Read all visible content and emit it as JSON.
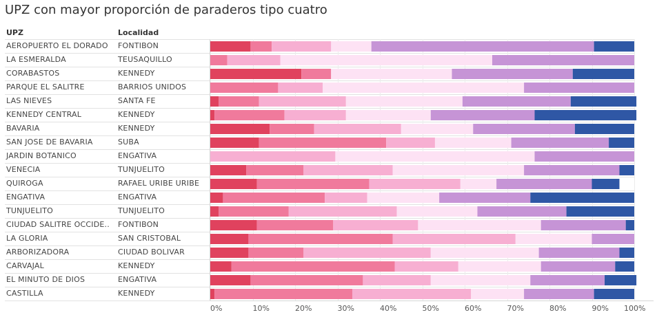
{
  "chart_data": {
    "type": "bar",
    "orientation": "horizontal",
    "stacked": true,
    "title": "UPZ con mayor proporción de paraderos tipo cuatro",
    "row_headers": [
      "UPZ",
      "Localidad"
    ],
    "categories": [
      {
        "upz": "AEROPUERTO EL DORADO",
        "localidad": "FONTIBON"
      },
      {
        "upz": "LA ESMERALDA",
        "localidad": "TEUSAQUILLO"
      },
      {
        "upz": "CORABASTOS",
        "localidad": "KENNEDY"
      },
      {
        "upz": "PARQUE EL SALITRE",
        "localidad": "BARRIOS UNIDOS"
      },
      {
        "upz": "LAS NIEVES",
        "localidad": "SANTA FE"
      },
      {
        "upz": "KENNEDY CENTRAL",
        "localidad": "KENNEDY"
      },
      {
        "upz": "BAVARIA",
        "localidad": "KENNEDY"
      },
      {
        "upz": "SAN JOSE DE BAVARIA",
        "localidad": "SUBA"
      },
      {
        "upz": "JARDIN BOTANICO",
        "localidad": "ENGATIVA"
      },
      {
        "upz": "VENECIA",
        "localidad": "TUNJUELITO"
      },
      {
        "upz": "QUIROGA",
        "localidad": "RAFAEL URIBE URIBE"
      },
      {
        "upz": "ENGATIVA",
        "localidad": "ENGATIVA"
      },
      {
        "upz": "TUNJUELITO",
        "localidad": "TUNJUELITO"
      },
      {
        "upz": "CIUDAD SALITRE OCCIDE..",
        "localidad": "FONTIBON"
      },
      {
        "upz": "LA GLORIA",
        "localidad": "SAN CRISTOBAL"
      },
      {
        "upz": "ARBORIZADORA",
        "localidad": "CIUDAD BOLIVAR"
      },
      {
        "upz": "CARVAJAL",
        "localidad": "KENNEDY"
      },
      {
        "upz": "EL MINUTO DE DIOS",
        "localidad": "ENGATIVA"
      },
      {
        "upz": "CASTILLA",
        "localidad": "KENNEDY"
      }
    ],
    "series": [
      {
        "color": "#e0425e",
        "values": [
          9.5,
          0,
          21.5,
          0,
          2,
          1,
          14,
          11.5,
          0,
          8.5,
          11,
          3,
          2,
          11,
          9,
          9,
          5,
          9.5,
          1
        ]
      },
      {
        "color": "#f07a9c",
        "values": [
          5,
          4,
          7,
          16,
          9.5,
          16.5,
          10.5,
          30,
          0,
          13.5,
          26.5,
          24,
          16.5,
          18,
          34,
          13,
          38.5,
          26.5,
          32.5
        ]
      },
      {
        "color": "#f7afd2",
        "values": [
          14,
          12.5,
          0,
          10.5,
          20.5,
          14.5,
          20.5,
          11.5,
          29.5,
          21,
          21.5,
          10,
          25.5,
          20,
          29,
          30,
          15,
          16,
          28
        ]
      },
      {
        "color": "#fde2f4",
        "values": [
          9.5,
          50,
          28.5,
          47.5,
          27.5,
          20,
          17,
          18,
          47,
          31,
          8.5,
          17,
          19,
          29,
          18,
          25.5,
          19.5,
          23.5,
          12.5
        ]
      },
      {
        "color": "#c694d6",
        "values": [
          52.5,
          33.5,
          28.5,
          26,
          25.5,
          24.5,
          24,
          23,
          23.5,
          22.5,
          22.5,
          21.5,
          21,
          20,
          10,
          19,
          17.5,
          17.5,
          16.5
        ]
      },
      {
        "color": "#2f57a5",
        "values": [
          9.5,
          0,
          14.5,
          0,
          15.5,
          24,
          14,
          6,
          0,
          3.5,
          6.5,
          24.5,
          16,
          2,
          0,
          3.5,
          4.5,
          7.5,
          9.5
        ]
      }
    ],
    "x_ticks": [
      "0%",
      "10%",
      "20%",
      "30%",
      "40%",
      "50%",
      "60%",
      "70%",
      "80%",
      "90%",
      "100%"
    ],
    "xlim": [
      0,
      100
    ],
    "grid": true,
    "legend": "none"
  }
}
